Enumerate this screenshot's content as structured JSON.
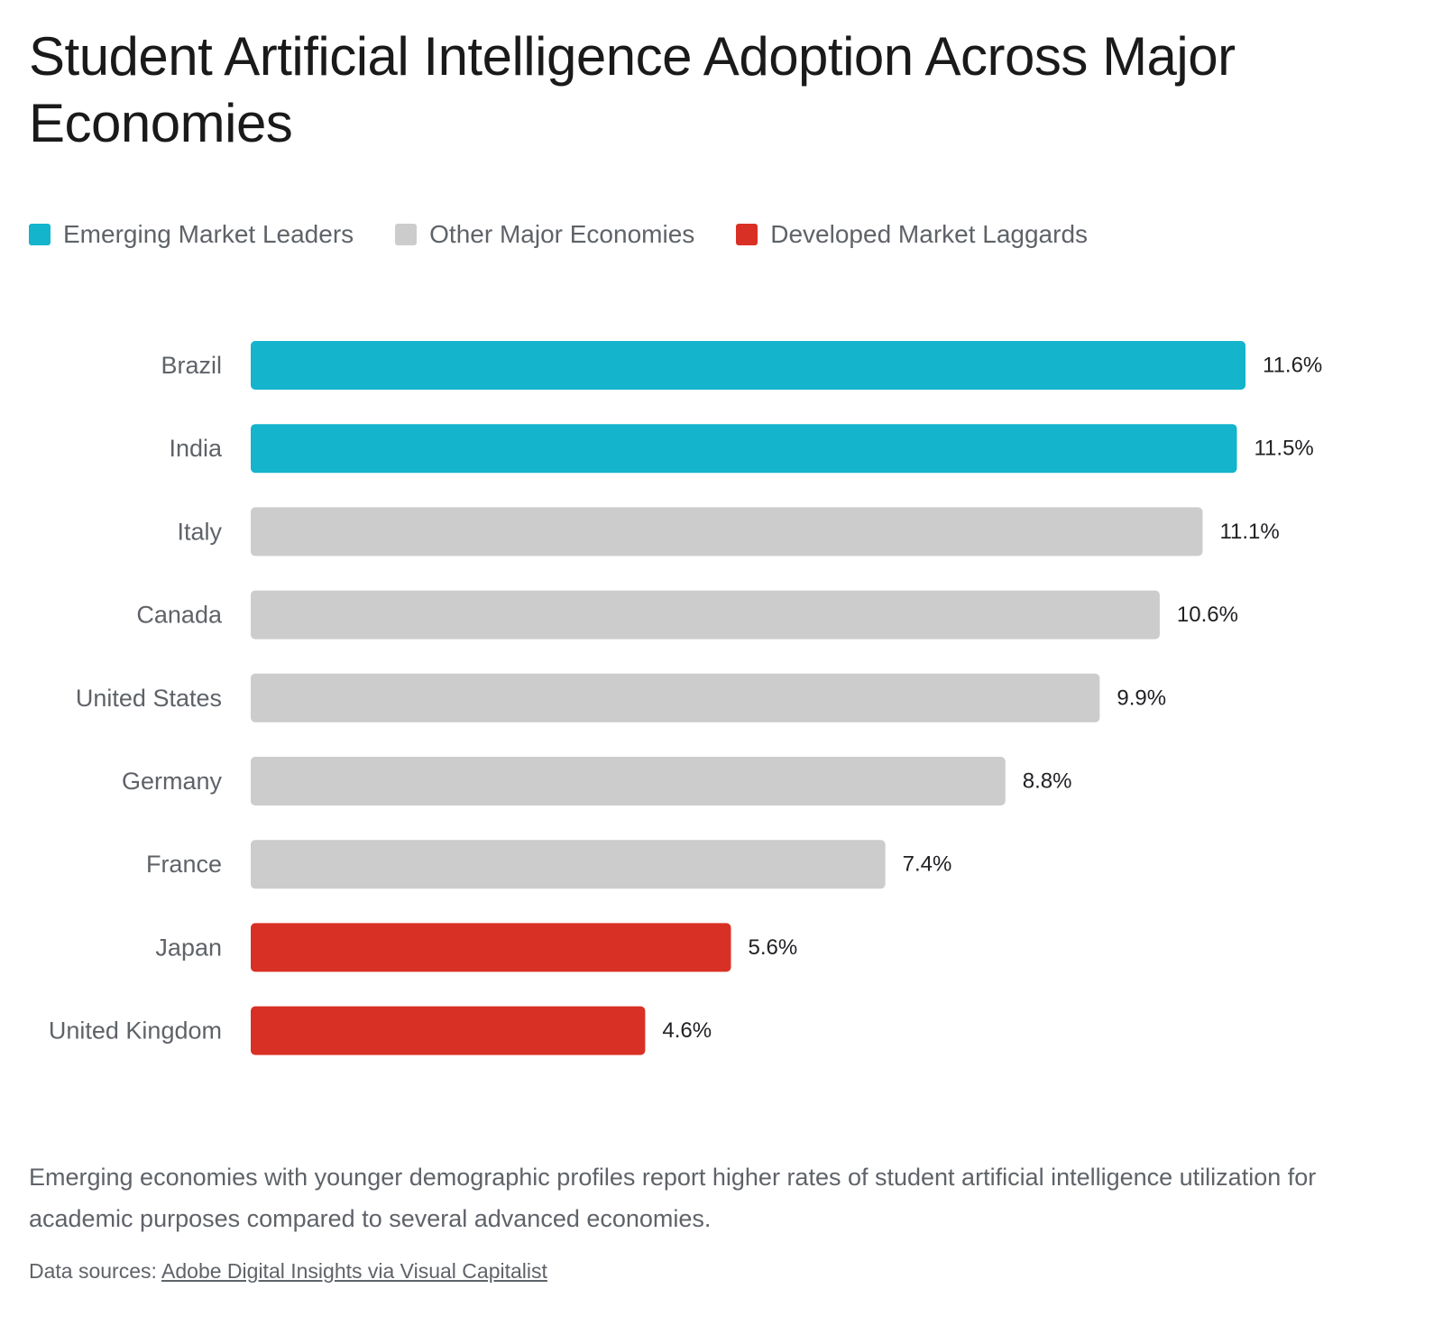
{
  "title": "Student Artificial Intelligence Adoption Across Major Economies",
  "legend": [
    {
      "label": "Emerging Market Leaders",
      "color": "#13b4cc"
    },
    {
      "label": "Other Major Economies",
      "color": "#cccccc"
    },
    {
      "label": "Developed Market Laggards",
      "color": "#d93025"
    }
  ],
  "chart_data": {
    "type": "bar",
    "orientation": "horizontal",
    "categories": [
      "Brazil",
      "India",
      "Italy",
      "Canada",
      "United States",
      "Germany",
      "France",
      "Japan",
      "United Kingdom"
    ],
    "values": [
      11.6,
      11.5,
      11.1,
      10.6,
      9.9,
      8.8,
      7.4,
      5.6,
      4.6
    ],
    "value_labels": [
      "11.6%",
      "11.5%",
      "11.1%",
      "10.6%",
      "9.9%",
      "8.8%",
      "7.4%",
      "5.6%",
      "4.6%"
    ],
    "groups": [
      "Emerging Market Leaders",
      "Emerging Market Leaders",
      "Other Major Economies",
      "Other Major Economies",
      "Other Major Economies",
      "Other Major Economies",
      "Other Major Economies",
      "Developed Market Laggards",
      "Developed Market Laggards"
    ],
    "xlim": [
      0,
      11.6
    ],
    "grid": false,
    "legend_position": "top-left"
  },
  "note": "Emerging economies with younger demographic profiles report higher rates of student artificial intelligence utilization for academic purposes compared to several advanced economies.",
  "source": {
    "prefix": "Data sources:",
    "link_text": "Adobe Digital Insights via Visual Capitalist"
  }
}
